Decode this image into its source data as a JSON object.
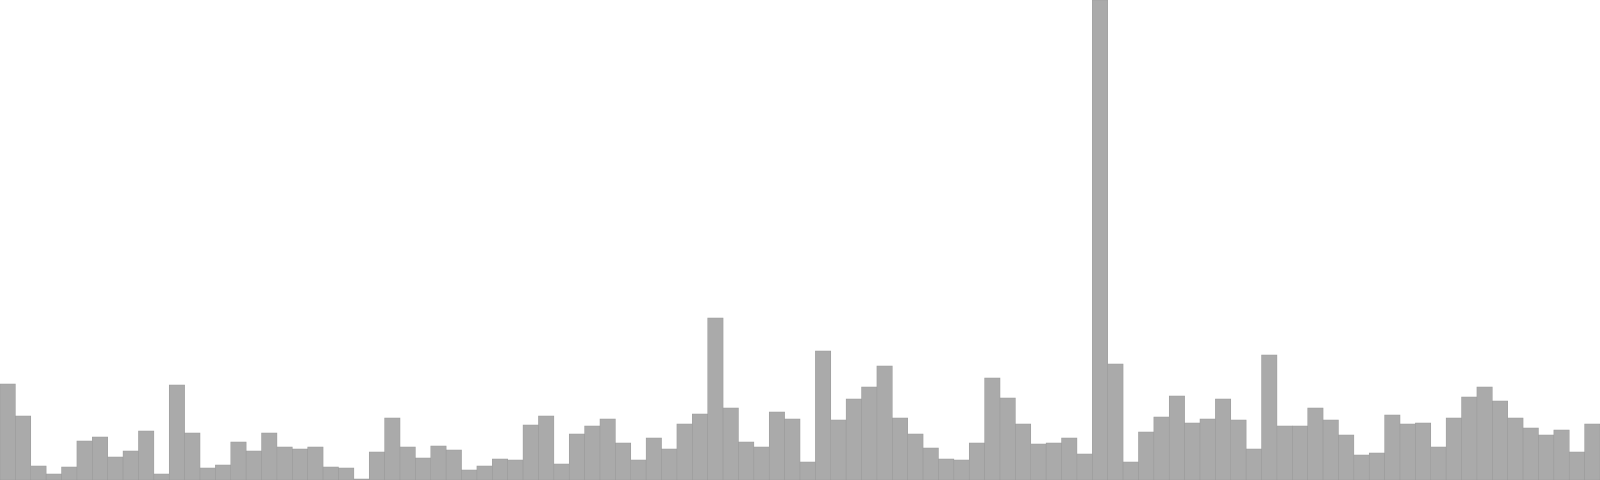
{
  "chart_data": {
    "type": "bar",
    "title": "",
    "xlabel": "",
    "ylabel": "",
    "ylim": [
      0,
      480
    ],
    "grid": false,
    "legend": "none",
    "bar_color": "#aaaaaa",
    "bar_edge_color": "#999999",
    "background_color": "#ffffff",
    "values": [
      96,
      64,
      14,
      6,
      13,
      39,
      43,
      23,
      29,
      49,
      6,
      95,
      47,
      12,
      15,
      38,
      29,
      47,
      33,
      31,
      33,
      13,
      12,
      1,
      28,
      62,
      33,
      22,
      34,
      30,
      10,
      14,
      21,
      20,
      55,
      64,
      16,
      46,
      54,
      61,
      37,
      20,
      42,
      31,
      56,
      66,
      162,
      72,
      38,
      33,
      68,
      61,
      18,
      129,
      60,
      81,
      93,
      114,
      62,
      46,
      32,
      21,
      20,
      37,
      102,
      82,
      56,
      36,
      37,
      42,
      26,
      480,
      116,
      18,
      48,
      63,
      84,
      57,
      61,
      81,
      60,
      31,
      125,
      54,
      54,
      72,
      60,
      45,
      25,
      27,
      65,
      56,
      57,
      33,
      62,
      83,
      93,
      79,
      62,
      52,
      45,
      50,
      28,
      56
    ]
  }
}
